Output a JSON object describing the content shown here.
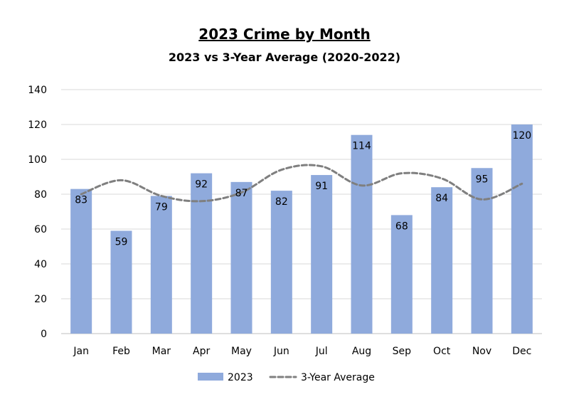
{
  "chart_data": {
    "type": "bar",
    "title": "2023 Crime by Month",
    "subtitle": "2023 vs 3-Year Average (2020-2022)",
    "xlabel": "",
    "ylabel": "",
    "categories": [
      "Jan",
      "Feb",
      "Mar",
      "Apr",
      "May",
      "Jun",
      "Jul",
      "Aug",
      "Sep",
      "Oct",
      "Nov",
      "Dec"
    ],
    "ylim": [
      0,
      140
    ],
    "yticks": [
      0,
      20,
      40,
      60,
      80,
      100,
      120,
      140
    ],
    "grid": true,
    "legend_position": "bottom",
    "series": [
      {
        "name": "2023",
        "type": "bar",
        "color": "#8faadc",
        "values": [
          83,
          59,
          79,
          92,
          87,
          82,
          91,
          114,
          68,
          84,
          95,
          120
        ]
      },
      {
        "name": "3-Year Average",
        "type": "line",
        "style": "dashed",
        "color": "#7f7f7f",
        "values": [
          80,
          88,
          79,
          76,
          81,
          94,
          96,
          85,
          92,
          89,
          77,
          86
        ]
      }
    ]
  }
}
